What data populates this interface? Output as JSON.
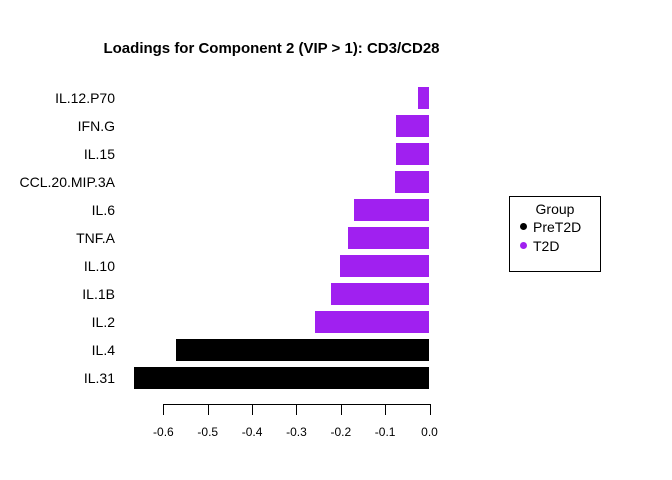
{
  "chart_data": {
    "type": "bar",
    "orientation": "horizontal",
    "title": "Loadings for Component 2 (VIP > 1): CD3/CD28",
    "categories": [
      "IL.12.P70",
      "IFN.G",
      "IL.15",
      "CCL.20.MIP.3A",
      "IL.6",
      "TNF.A",
      "IL.10",
      "IL.1B",
      "IL.2",
      "IL.4",
      "IL.31"
    ],
    "values": [
      -0.026,
      -0.075,
      -0.075,
      -0.078,
      -0.171,
      -0.184,
      -0.201,
      -0.222,
      -0.258,
      -0.572,
      -0.666
    ],
    "groups": [
      "T2D",
      "T2D",
      "T2D",
      "T2D",
      "T2D",
      "T2D",
      "T2D",
      "T2D",
      "T2D",
      "PreT2D",
      "PreT2D"
    ],
    "xlabel": "",
    "ylabel": "",
    "xlim": [
      -0.6,
      0.0
    ],
    "x_ticks": [
      -0.6,
      -0.5,
      -0.4,
      -0.3,
      -0.2,
      -0.1,
      0.0
    ],
    "x_tick_labels": [
      "-0.6",
      "-0.5",
      "-0.4",
      "-0.3",
      "-0.2",
      "-0.1",
      "0.0"
    ],
    "grid": false,
    "background_color": "#FFFFFF",
    "colors": {
      "PreT2D": "#000000",
      "T2D": "#A020F0"
    },
    "legend": {
      "title": "Group",
      "position": "right",
      "entries": [
        {
          "label": "PreT2D",
          "color": "#000000"
        },
        {
          "label": "T2D",
          "color": "#A020F0"
        }
      ]
    }
  }
}
